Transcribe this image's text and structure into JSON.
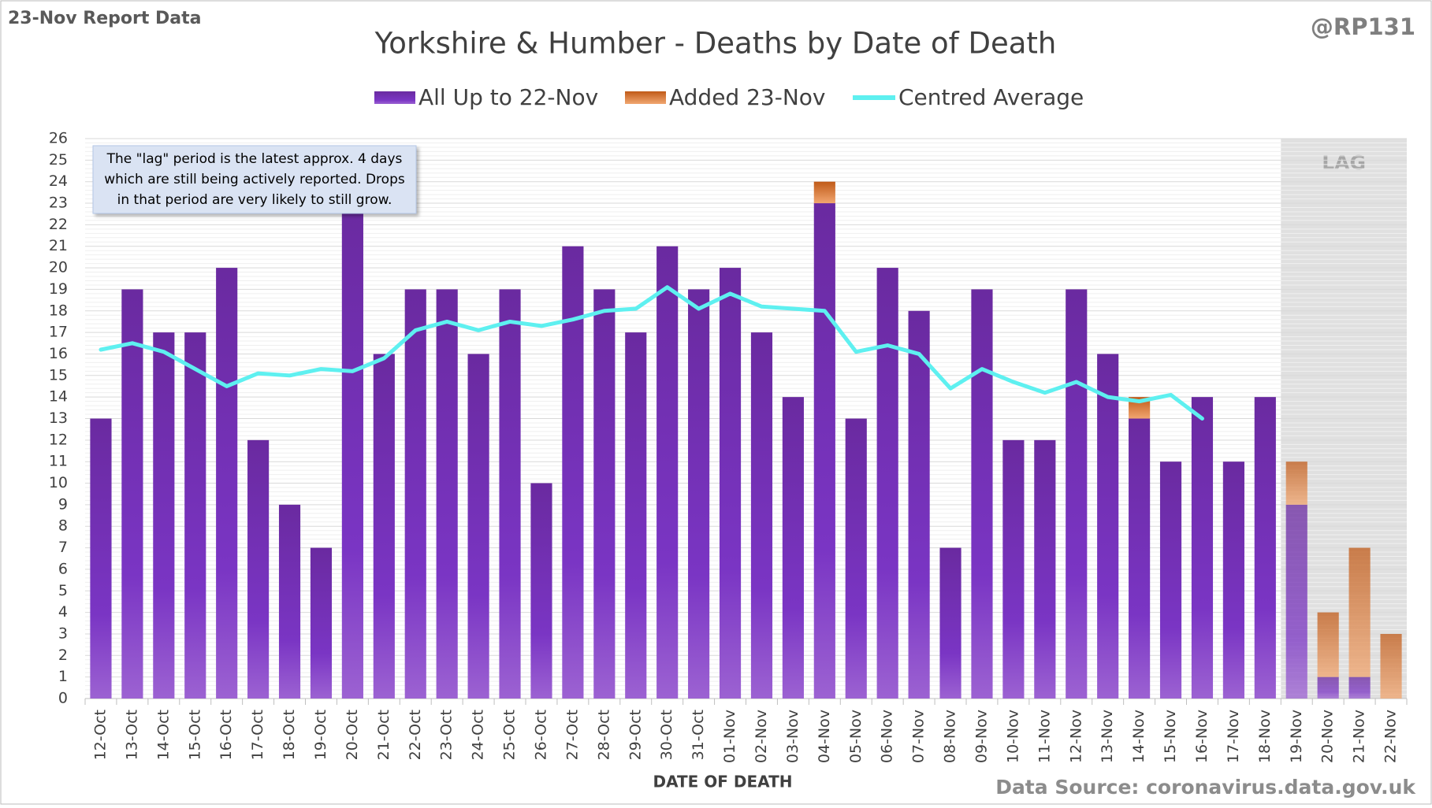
{
  "chart_data": {
    "type": "bar",
    "report_label": "23-Nov Report Data",
    "author": "@RP131",
    "title": "Yorkshire & Humber - Deaths by Date of Death",
    "annotation": [
      "The \"lag\" period is the latest approx. 4 days",
      "which are still being actively reported.  Drops",
      "in that period are very likely to still grow."
    ],
    "lag_label": "LAG",
    "x_label": "DATE OF DEATH",
    "source": "Data Source: coronavirus.data.gov.uk",
    "categories": [
      "12-Oct",
      "13-Oct",
      "14-Oct",
      "15-Oct",
      "16-Oct",
      "17-Oct",
      "18-Oct",
      "19-Oct",
      "20-Oct",
      "21-Oct",
      "22-Oct",
      "23-Oct",
      "24-Oct",
      "25-Oct",
      "26-Oct",
      "27-Oct",
      "28-Oct",
      "29-Oct",
      "30-Oct",
      "31-Oct",
      "01-Nov",
      "02-Nov",
      "03-Nov",
      "04-Nov",
      "05-Nov",
      "06-Nov",
      "07-Nov",
      "08-Nov",
      "09-Nov",
      "10-Nov",
      "11-Nov",
      "12-Nov",
      "13-Nov",
      "14-Nov",
      "15-Nov",
      "16-Nov",
      "17-Nov",
      "18-Nov",
      "19-Nov",
      "20-Nov",
      "21-Nov",
      "22-Nov"
    ],
    "series": [
      {
        "name": "All Up to 22-Nov",
        "color": "#7030a0",
        "values": [
          13,
          19,
          17,
          17,
          20,
          12,
          9,
          7,
          23,
          16,
          19,
          19,
          16,
          19,
          10,
          21,
          19,
          17,
          21,
          19,
          20,
          17,
          14,
          23,
          13,
          20,
          18,
          7,
          19,
          12,
          12,
          19,
          16,
          13,
          11,
          14,
          11,
          14,
          9,
          1,
          1,
          0
        ]
      },
      {
        "name": "Added 23-Nov",
        "color": "#c55a11",
        "values": [
          0,
          0,
          0,
          0,
          0,
          0,
          0,
          0,
          0,
          0,
          0,
          0,
          0,
          0,
          0,
          0,
          0,
          0,
          0,
          0,
          0,
          0,
          0,
          1,
          0,
          0,
          0,
          0,
          0,
          0,
          0,
          0,
          0,
          1,
          0,
          0,
          0,
          0,
          2,
          3,
          6,
          3
        ]
      },
      {
        "name": "Centred Average",
        "type": "line",
        "color": "#5ef0f0",
        "values": [
          16.2,
          16.5,
          16.1,
          15.3,
          14.5,
          15.1,
          15.0,
          15.3,
          15.2,
          15.8,
          17.1,
          17.5,
          17.1,
          17.5,
          17.3,
          17.6,
          18.0,
          18.1,
          19.1,
          18.1,
          18.8,
          18.2,
          18.1,
          18.0,
          16.1,
          16.4,
          16.0,
          14.4,
          15.3,
          14.7,
          14.2,
          14.7,
          14.0,
          13.8,
          14.1,
          13.0,
          null,
          null,
          null,
          null,
          null,
          null
        ]
      }
    ],
    "stacked": true,
    "ylim": [
      0,
      26
    ],
    "yticks": [
      0,
      1,
      2,
      3,
      4,
      5,
      6,
      7,
      8,
      9,
      10,
      11,
      12,
      13,
      14,
      15,
      16,
      17,
      18,
      19,
      20,
      21,
      22,
      23,
      24,
      25,
      26
    ],
    "grid": true
  }
}
